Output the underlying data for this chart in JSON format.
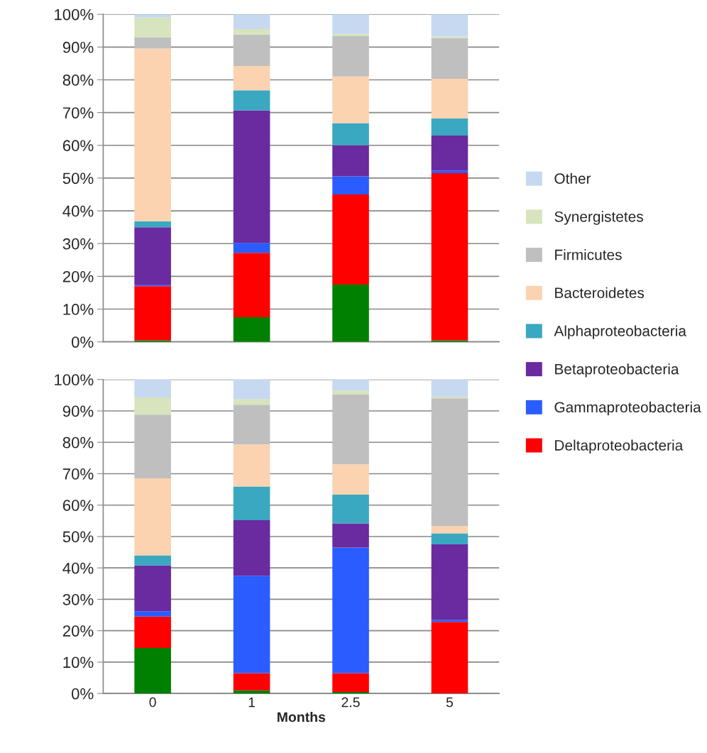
{
  "chart_data": [
    {
      "type": "bar",
      "stacked": true,
      "categories": [
        "0",
        "1",
        "2.5",
        "5"
      ],
      "ylim": [
        0,
        100
      ],
      "yticks": [
        {
          "value": 0,
          "label": "0%"
        },
        {
          "value": 10,
          "label": "10%"
        },
        {
          "value": 20,
          "label": "20%"
        },
        {
          "value": 30,
          "label": "30%"
        },
        {
          "value": 40,
          "label": "40%"
        },
        {
          "value": 50,
          "label": "50%"
        },
        {
          "value": 60,
          "label": "60%"
        },
        {
          "value": 70,
          "label": "70%"
        },
        {
          "value": 80,
          "label": "80%"
        },
        {
          "value": 90,
          "label": "90%"
        },
        {
          "value": 100,
          "label": "100%"
        }
      ],
      "grid": "y",
      "tick_labels": "y",
      "legend": "right",
      "series": [
        {
          "color": "#008000",
          "values": [
            0.5,
            7.5,
            17.5,
            0.5
          ]
        },
        {
          "name": "Deltaproteobacteria",
          "color": "#ff0000",
          "values": [
            16.5,
            19.7,
            27.5,
            51
          ]
        },
        {
          "name": "Gammaproteobacteria",
          "color": "#2a5cff",
          "values": [
            0.3,
            3,
            5.5,
            0.8
          ]
        },
        {
          "name": "Betaproteobacteria",
          "color": "#6a2aa0",
          "values": [
            17.7,
            40.5,
            9.5,
            10.7
          ]
        },
        {
          "name": "Alphaproteobacteria",
          "color": "#3aa8c0",
          "values": [
            1.8,
            6.1,
            6.8,
            5.2
          ]
        },
        {
          "name": "Bacteroidetes",
          "color": "#fbd3b0",
          "values": [
            52.7,
            7.4,
            14.2,
            12.1
          ]
        },
        {
          "name": "Firmicutes",
          "color": "#bfbfbf",
          "values": [
            3.5,
            9.6,
            12.3,
            12.5
          ]
        },
        {
          "name": "Synergistetes",
          "color": "#d7e4bd",
          "values": [
            6,
            1.7,
            0.7,
            0.4
          ]
        },
        {
          "name": "Other",
          "color": "#c6d9f1",
          "values": [
            1,
            4.5,
            6,
            6.8
          ]
        }
      ]
    },
    {
      "type": "bar",
      "stacked": true,
      "categories": [
        "0",
        "1",
        "2.5",
        "5"
      ],
      "xlabel": "Months",
      "ylim": [
        0,
        100
      ],
      "yticks": [
        {
          "value": 0,
          "label": "0%"
        },
        {
          "value": 10,
          "label": "10%"
        },
        {
          "value": 20,
          "label": "20%"
        },
        {
          "value": 30,
          "label": "30%"
        },
        {
          "value": 40,
          "label": "40%"
        },
        {
          "value": 50,
          "label": "50%"
        },
        {
          "value": 60,
          "label": "60%"
        },
        {
          "value": 70,
          "label": "70%"
        },
        {
          "value": 80,
          "label": "80%"
        },
        {
          "value": 90,
          "label": "90%"
        },
        {
          "value": 100,
          "label": "100%"
        }
      ],
      "grid": "y",
      "series": [
        {
          "color": "#008000",
          "values": [
            14.5,
            1,
            0.5,
            0
          ]
        },
        {
          "color": "#ff0000",
          "values": [
            10,
            5.5,
            6,
            22.8
          ]
        },
        {
          "color": "#2a5cff",
          "values": [
            1.7,
            31,
            40,
            0.7
          ]
        },
        {
          "color": "#6a2aa0",
          "values": [
            14.6,
            17.7,
            7.7,
            24
          ]
        },
        {
          "color": "#3aa8c0",
          "values": [
            3.2,
            10.7,
            9.1,
            3.5
          ]
        },
        {
          "color": "#fbd3b0",
          "values": [
            24.5,
            13.4,
            9.7,
            2.3
          ]
        },
        {
          "color": "#bfbfbf",
          "values": [
            20.3,
            12.7,
            22.2,
            40.7
          ]
        },
        {
          "color": "#d7e4bd",
          "values": [
            5.5,
            1.8,
            1.3,
            0.5
          ]
        },
        {
          "color": "#c6d9f1",
          "values": [
            5.7,
            6.2,
            3.5,
            5.5
          ]
        }
      ]
    }
  ]
}
